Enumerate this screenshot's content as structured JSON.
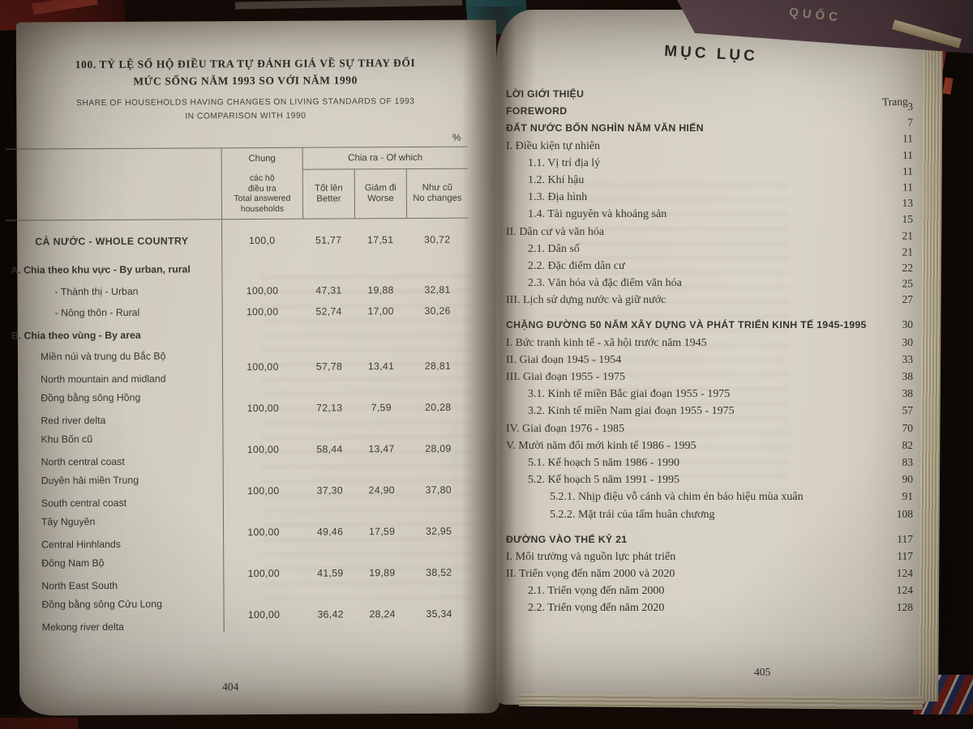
{
  "left_page": {
    "title_vi": [
      "100. TỶ LỆ SỐ HỘ ĐIỀU TRA TỰ ĐÁNH GIÁ VỀ SỰ THAY ĐỔI",
      "MỨC SỐNG NĂM 1993 SO VỚI NĂM 1990"
    ],
    "title_en": [
      "SHARE OF HOUSEHOLDS HAVING CHANGES ON LIVING STANDARDS OF 1993",
      "IN COMPARISON WITH 1990"
    ],
    "unit": "%",
    "page_number": "404",
    "table": {
      "spanner": "Chia ra - Of which",
      "total_col_header": [
        "Chung",
        "các hộ",
        "điều tra",
        "Total answered",
        "households"
      ],
      "sub_cols": [
        [
          "Tốt lên",
          "Better"
        ],
        [
          "Giảm đi",
          "Worse"
        ],
        [
          "Như cũ",
          "No changes"
        ]
      ],
      "rows": [
        {
          "type": "caps",
          "label": "CẢ NƯỚC - WHOLE COUNTRY",
          "values": [
            "100,0",
            "51,77",
            "17,51",
            "30,72"
          ]
        },
        {
          "type": "section",
          "label": "A. Chia theo khu vực - By urban, rural"
        },
        {
          "type": "ind",
          "label": "- Thành thị - Urban",
          "values": [
            "100,00",
            "47,31",
            "19,88",
            "32,81"
          ]
        },
        {
          "type": "ind",
          "label": "- Nông thôn - Rural",
          "values": [
            "100,00",
            "52,74",
            "17,00",
            "30,26"
          ]
        },
        {
          "type": "section",
          "label": "B. Chia theo vùng - By area"
        },
        {
          "type": "two",
          "label_vi": "Miền núi và trung du Bắc Bộ",
          "label_en": "North mountain and midland",
          "values": [
            "100,00",
            "57,78",
            "13,41",
            "28,81"
          ]
        },
        {
          "type": "two",
          "label_vi": "Đồng bằng sông Hồng",
          "label_en": "Red river delta",
          "values": [
            "100,00",
            "72,13",
            "7,59",
            "20,28"
          ]
        },
        {
          "type": "two",
          "label_vi": "Khu Bốn cũ",
          "label_en": "North central coast",
          "values": [
            "100,00",
            "58,44",
            "13,47",
            "28,09"
          ]
        },
        {
          "type": "two",
          "label_vi": "Duyên hải miền Trung",
          "label_en": "South central coast",
          "values": [
            "100,00",
            "37,30",
            "24,90",
            "37,80"
          ]
        },
        {
          "type": "two",
          "label_vi": "Tây Nguyên",
          "label_en": "Central Hinhlands",
          "values": [
            "100,00",
            "49,46",
            "17,59",
            "32,95"
          ]
        },
        {
          "type": "two",
          "label_vi": "Đông Nam Bộ",
          "label_en": "North East South",
          "values": [
            "100,00",
            "41,59",
            "19,89",
            "38,52"
          ]
        },
        {
          "type": "two",
          "label_vi": "Đồng bằng sông Cửu Long",
          "label_en": "Mekong river delta",
          "values": [
            "100,00",
            "36,42",
            "28,24",
            "35,34"
          ]
        }
      ]
    }
  },
  "right_page": {
    "title": "MỤC LỤC",
    "page_col_header": "Trang",
    "page_number": "405",
    "entries": [
      {
        "label": "LỜI GIỚI THIỆU",
        "page": "3",
        "level": "part"
      },
      {
        "label": "FOREWORD",
        "page": "7",
        "level": "part"
      },
      {
        "label": "ĐẤT NƯỚC BỐN NGHÌN NĂM VĂN HIẾN",
        "page": "11",
        "level": "part"
      },
      {
        "label": "I. Điều kiện tự nhiên",
        "page": "11",
        "level": "l1"
      },
      {
        "label": "1.1. Vị trí địa lý",
        "page": "11",
        "level": "l2"
      },
      {
        "label": "1.2. Khí hậu",
        "page": "11",
        "level": "l2"
      },
      {
        "label": "1.3. Địa hình",
        "page": "13",
        "level": "l2"
      },
      {
        "label": "1.4. Tài nguyên và khoáng sản",
        "page": "15",
        "level": "l2"
      },
      {
        "label": "II. Dân cư và văn hóa",
        "page": "21",
        "level": "l1"
      },
      {
        "label": "2.1. Dân số",
        "page": "21",
        "level": "l2"
      },
      {
        "label": "2.2. Đặc điểm dân cư",
        "page": "22",
        "level": "l2"
      },
      {
        "label": "2.3. Văn hóa và đặc điểm văn hóa",
        "page": "25",
        "level": "l2"
      },
      {
        "label": "III. Lịch sử dựng nước và giữ nước",
        "page": "27",
        "level": "l1"
      },
      {
        "label": "CHẶNG ĐƯỜNG 50 NĂM XÂY DỰNG VÀ PHÁT TRIỂN KINH TẾ 1945-1995",
        "page": "30",
        "level": "part"
      },
      {
        "label": "I. Bức tranh kinh tế - xã hội trước năm 1945",
        "page": "30",
        "level": "l1"
      },
      {
        "label": "II. Giai đoạn 1945 - 1954",
        "page": "33",
        "level": "l1"
      },
      {
        "label": "III. Giai đoạn 1955 - 1975",
        "page": "38",
        "level": "l1"
      },
      {
        "label": "3.1. Kinh tế miền Bắc giai đoạn 1955 - 1975",
        "page": "38",
        "level": "l2"
      },
      {
        "label": "3.2. Kinh tế miền Nam giai đoạn 1955 - 1975",
        "page": "57",
        "level": "l2"
      },
      {
        "label": "IV. Giai đoạn 1976 - 1985",
        "page": "70",
        "level": "l1"
      },
      {
        "label": "V. Mười năm đổi mới kinh tế 1986 - 1995",
        "page": "82",
        "level": "l1"
      },
      {
        "label": "5.1. Kế hoạch 5 năm 1986 - 1990",
        "page": "83",
        "level": "l2"
      },
      {
        "label": "5.2. Kế hoạch 5 năm 1991 - 1995",
        "page": "90",
        "level": "l2"
      },
      {
        "label": "5.2.1. Nhịp điệu vỗ cánh và chim én báo hiệu mùa xuân",
        "page": "91",
        "level": "l3"
      },
      {
        "label": "5.2.2. Mặt trái của tấm huân chương",
        "page": "108",
        "level": "l3"
      },
      {
        "label": "ĐƯỜNG VÀO THẾ KỶ 21",
        "page": "117",
        "level": "part"
      },
      {
        "label": "I. Môi trường và nguồn lực phát triển",
        "page": "117",
        "level": "l1"
      },
      {
        "label": "II. Triển vọng đến năm 2000 và 2020",
        "page": "124",
        "level": "l1"
      },
      {
        "label": "2.1. Triển vọng đến năm 2000",
        "page": "124",
        "level": "l2"
      },
      {
        "label": "2.2. Triển vọng đến năm 2020",
        "page": "128",
        "level": "l2"
      }
    ]
  },
  "background": {
    "spine_text": "QUỐC"
  }
}
